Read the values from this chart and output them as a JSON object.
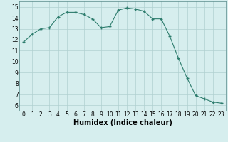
{
  "x": [
    0,
    1,
    2,
    3,
    4,
    5,
    6,
    7,
    8,
    9,
    10,
    11,
    12,
    13,
    14,
    15,
    16,
    17,
    18,
    19,
    20,
    21,
    22,
    23
  ],
  "y": [
    11.8,
    12.5,
    13.0,
    13.1,
    14.1,
    14.5,
    14.5,
    14.3,
    13.9,
    13.1,
    13.2,
    14.7,
    14.9,
    14.8,
    14.6,
    13.9,
    13.9,
    12.3,
    10.3,
    8.5,
    6.9,
    6.6,
    6.3,
    6.2
  ],
  "xlabel": "Humidex (Indice chaleur)",
  "ylim": [
    5.5,
    15.5
  ],
  "xlim": [
    -0.5,
    23.5
  ],
  "yticks": [
    6,
    7,
    8,
    9,
    10,
    11,
    12,
    13,
    14,
    15
  ],
  "xticks": [
    0,
    1,
    2,
    3,
    4,
    5,
    6,
    7,
    8,
    9,
    10,
    11,
    12,
    13,
    14,
    15,
    16,
    17,
    18,
    19,
    20,
    21,
    22,
    23
  ],
  "line_color": "#2e7d6e",
  "marker_color": "#2e7d6e",
  "bg_color": "#d6eeee",
  "grid_color": "#b0d0d0",
  "tick_fontsize": 5.5,
  "xlabel_fontsize": 7
}
